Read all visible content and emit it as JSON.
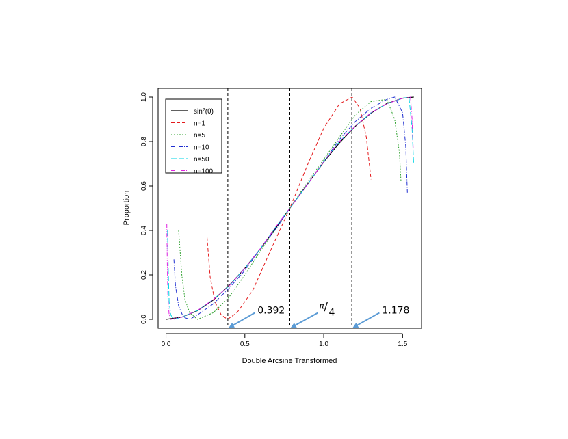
{
  "chart_data": {
    "type": "line",
    "xlabel": "Double Arcsine Transformed",
    "ylabel": "Proportion",
    "xlim": [
      -0.05,
      1.62
    ],
    "ylim": [
      -0.04,
      1.04
    ],
    "x_ticks": [
      0.0,
      0.5,
      1.0,
      1.5
    ],
    "x_tick_labels": [
      "0.0",
      "0.5",
      "1.0",
      "1.5"
    ],
    "y_ticks": [
      0.0,
      0.2,
      0.4,
      0.6,
      0.8,
      1.0
    ],
    "y_tick_labels": [
      "0.0",
      "0.2",
      "0.4",
      "0.6",
      "0.8",
      "1.0"
    ],
    "grid": false,
    "legend_position": "top-left",
    "vlines": [
      0.392,
      0.785,
      1.178
    ],
    "annotations": [
      {
        "label": "0.392",
        "x": 0.392,
        "text_x": 0.58,
        "text_y": 0.02
      },
      {
        "label_num": "π",
        "label_den": "4",
        "x": 0.785,
        "text_x": 0.98,
        "text_y": 0.02
      },
      {
        "label": "1.178",
        "x": 1.178,
        "text_x": 1.37,
        "text_y": 0.02
      }
    ],
    "series": [
      {
        "name": "sin",
        "name_sup": "2",
        "name_tail": "(θ)",
        "color": "#000000",
        "dash": "",
        "width": 1.2,
        "x": [
          0.0,
          0.1,
          0.2,
          0.3,
          0.4,
          0.5,
          0.6,
          0.7,
          0.785,
          0.9,
          1.0,
          1.1,
          1.2,
          1.3,
          1.4,
          1.5,
          1.571
        ],
        "y": [
          0.0,
          0.01,
          0.039,
          0.087,
          0.152,
          0.23,
          0.319,
          0.415,
          0.5,
          0.611,
          0.708,
          0.794,
          0.869,
          0.928,
          0.971,
          0.995,
          1.0
        ]
      },
      {
        "name": "n=1",
        "color": "#e41a1c",
        "dash": "5,3",
        "width": 1.0,
        "x": [
          0.26,
          0.28,
          0.31,
          0.35,
          0.39,
          0.45,
          0.55,
          0.65,
          0.785,
          0.9,
          1.0,
          1.1,
          1.18,
          1.23,
          1.27,
          1.3
        ],
        "y": [
          0.37,
          0.19,
          0.08,
          0.02,
          0.0,
          0.03,
          0.13,
          0.29,
          0.5,
          0.7,
          0.86,
          0.97,
          1.0,
          0.95,
          0.82,
          0.63
        ]
      },
      {
        "name": "n=5",
        "color": "#2ca02c",
        "dash": "2,2",
        "width": 1.0,
        "x": [
          0.08,
          0.1,
          0.12,
          0.15,
          0.2,
          0.3,
          0.4,
          0.5,
          0.6,
          0.7,
          0.785,
          0.9,
          1.0,
          1.1,
          1.2,
          1.3,
          1.4,
          1.45,
          1.48,
          1.49
        ],
        "y": [
          0.4,
          0.2,
          0.09,
          0.03,
          0.0,
          0.03,
          0.1,
          0.2,
          0.31,
          0.41,
          0.5,
          0.62,
          0.72,
          0.82,
          0.92,
          0.98,
          0.99,
          0.9,
          0.75,
          0.62
        ]
      },
      {
        "name": "n=10",
        "color": "#1f2fd0",
        "dash": "6,2,1,2",
        "width": 1.0,
        "x": [
          0.05,
          0.06,
          0.08,
          0.11,
          0.15,
          0.2,
          0.3,
          0.4,
          0.5,
          0.6,
          0.7,
          0.785,
          0.9,
          1.0,
          1.1,
          1.2,
          1.3,
          1.4,
          1.45,
          1.5,
          1.52,
          1.53
        ],
        "y": [
          0.27,
          0.15,
          0.06,
          0.01,
          0.0,
          0.02,
          0.07,
          0.14,
          0.22,
          0.32,
          0.41,
          0.5,
          0.61,
          0.71,
          0.81,
          0.89,
          0.95,
          0.99,
          1.0,
          0.93,
          0.78,
          0.57
        ]
      },
      {
        "name": "n=50",
        "color": "#00d5e5",
        "dash": "8,3",
        "width": 1.0,
        "x": [
          0.01,
          0.015,
          0.02,
          0.03,
          0.05,
          0.1,
          0.2,
          0.3,
          0.4,
          0.5,
          0.6,
          0.7,
          0.785,
          0.9,
          1.0,
          1.1,
          1.2,
          1.3,
          1.4,
          1.5,
          1.54,
          1.56,
          1.57
        ],
        "y": [
          0.4,
          0.2,
          0.08,
          0.02,
          0.0,
          0.01,
          0.04,
          0.09,
          0.15,
          0.23,
          0.32,
          0.42,
          0.5,
          0.61,
          0.71,
          0.8,
          0.87,
          0.93,
          0.97,
          0.995,
          1.0,
          0.86,
          0.7
        ]
      },
      {
        "name": "n=100",
        "color": "#e020e0",
        "dash": "6,2,1,2,1,2",
        "width": 1.0,
        "x": [
          0.005,
          0.008,
          0.012,
          0.02,
          0.03,
          0.06,
          0.1,
          0.2,
          0.3,
          0.4,
          0.5,
          0.6,
          0.7,
          0.785,
          0.9,
          1.0,
          1.1,
          1.2,
          1.3,
          1.4,
          1.5,
          1.55,
          1.56,
          1.567
        ],
        "y": [
          0.43,
          0.25,
          0.1,
          0.02,
          0.0,
          0.005,
          0.01,
          0.04,
          0.09,
          0.15,
          0.23,
          0.32,
          0.42,
          0.5,
          0.61,
          0.71,
          0.8,
          0.87,
          0.93,
          0.97,
          0.995,
          1.0,
          0.9,
          0.77
        ]
      }
    ]
  }
}
